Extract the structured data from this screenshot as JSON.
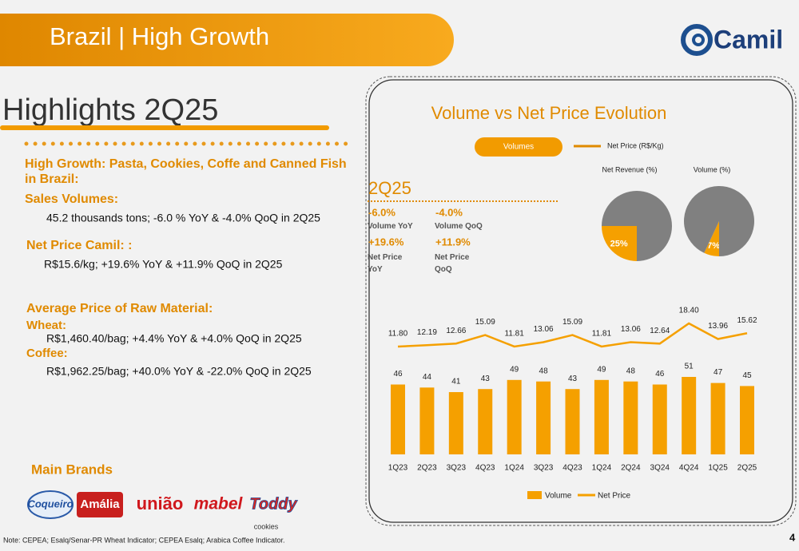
{
  "header": {
    "title": "Brazil | High Growth",
    "logo": "Camil"
  },
  "highlights": {
    "title": "Highlights 2Q25",
    "heading1": "High Growth: Pasta, Cookies, Coffe and Canned Fish in Brazil:",
    "sales_label": "Sales Volumes:",
    "sales_text": "45.2 thousands tons; -6.0 % YoY & -4.0% QoQ in 2Q25",
    "net_label": "Net Price Camil: :",
    "net_text": "R$15.6/kg; +19.6% YoY & +11.9% QoQ in 2Q25",
    "raw_label": "Average Price of Raw Material:",
    "wheat_label": "Wheat:",
    "wheat_text": "R$1,460.40/bag; +4.4% YoY & +4.0% QoQ in 2Q25",
    "coffee_label": "Coffee:",
    "coffee_text": "R$1,962.25/bag; +40.0% YoY & -22.0% QoQ in 2Q25"
  },
  "brands": {
    "title": "Main Brands",
    "items": [
      "Coqueiro",
      "Amália",
      "união",
      "mabel",
      "Toddy"
    ],
    "toddy_sub": "cookies"
  },
  "note": "Note: CEPEA; Esalq/Senar-PR Wheat Indicator; CEPEA Esalq; Arabica Coffee Indicator.",
  "page_number": "4",
  "panel": {
    "title": "Volume vs Net Price Evolution",
    "legend_top": [
      "Volumes",
      "Net Price (R$/Kg)"
    ],
    "period": "2Q25",
    "kpis": [
      {
        "value": "-6.0%",
        "label": "Volume YoY"
      },
      {
        "value": "-4.0%",
        "label": "Volume QoQ"
      },
      {
        "value": "+19.6%",
        "label": "Net Price YoY"
      },
      {
        "value": "+11.9%",
        "label": "Net Price QoQ"
      }
    ]
  },
  "chart_data": [
    {
      "type": "bar",
      "categories": [
        "1Q23",
        "2Q23",
        "3Q23",
        "4Q23",
        "1Q24",
        "3Q23",
        "4Q23",
        "1Q24",
        "2Q24",
        "3Q24",
        "4Q24",
        "1Q25",
        "2Q25"
      ],
      "series": [
        {
          "name": "Volume",
          "color": "#f5a000",
          "values": [
            46,
            44,
            41,
            43,
            49,
            48,
            43,
            49,
            48,
            46,
            51,
            47,
            45
          ]
        },
        {
          "name": "Net Price",
          "color": "#f5a000",
          "type": "line",
          "axis": "y2",
          "values": [
            11.8,
            12.19,
            12.66,
            15.09,
            11.81,
            13.06,
            15.09,
            11.81,
            13.06,
            12.64,
            18.4,
            13.96,
            15.62
          ],
          "value_labels": [
            "11.80",
            "12.19",
            "12.66",
            "15.09",
            "11.81",
            "13.06",
            "15.09",
            "11.81",
            "13.06",
            "12.64",
            "18.40",
            "13.96",
            "15.62"
          ]
        }
      ]
    },
    {
      "type": "pie",
      "title": "Net Revenue (%)",
      "values": [
        25,
        75
      ],
      "value_labels": [
        "25%",
        null
      ],
      "colors": [
        "#f5a000",
        "#808080"
      ]
    },
    {
      "type": "pie",
      "title": "Volume (%)",
      "values": [
        7,
        93
      ],
      "value_labels": [
        "7%",
        null
      ],
      "colors": [
        "#f5a000",
        "#808080"
      ]
    }
  ]
}
